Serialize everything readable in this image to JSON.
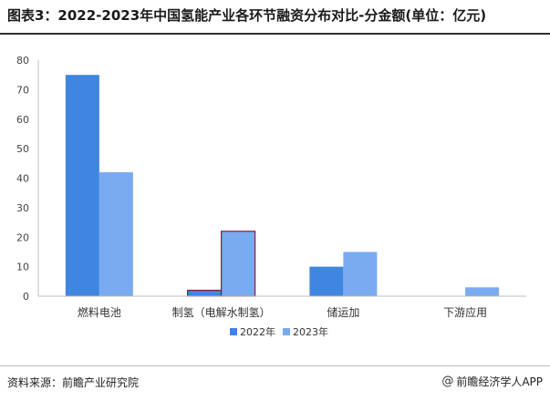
{
  "title": "图表3：2022-2023年中国氢能产业各环节融资分布对比-分金额(单位：亿元)",
  "source": "资料来源：前瞻产业研究院",
  "brand": {
    "icon": "at-icon",
    "text": "前瞻经济学人APP"
  },
  "colors": {
    "series_2022": "#3f86e0",
    "series_2023": "#7aaaf0",
    "highlight_outline": "#8b1a3a",
    "grid": "#d9d9d9",
    "axis": "#bfbfbf"
  },
  "chart_data": {
    "type": "bar",
    "categories": [
      "燃料电池",
      "制氢（电解水制氢）",
      "储运加",
      "下游应用"
    ],
    "series": [
      {
        "name": "2022年",
        "values": [
          75,
          2,
          10,
          0
        ]
      },
      {
        "name": "2023年",
        "values": [
          42,
          22,
          15,
          3
        ]
      }
    ],
    "ylim": [
      0,
      80
    ],
    "yticks": [
      "0",
      "10",
      "20",
      "30",
      "40",
      "50",
      "60",
      "70",
      "80"
    ],
    "grid": false,
    "legend": "bottom-center",
    "highlighted_category": "制氢（电解水制氢）"
  }
}
